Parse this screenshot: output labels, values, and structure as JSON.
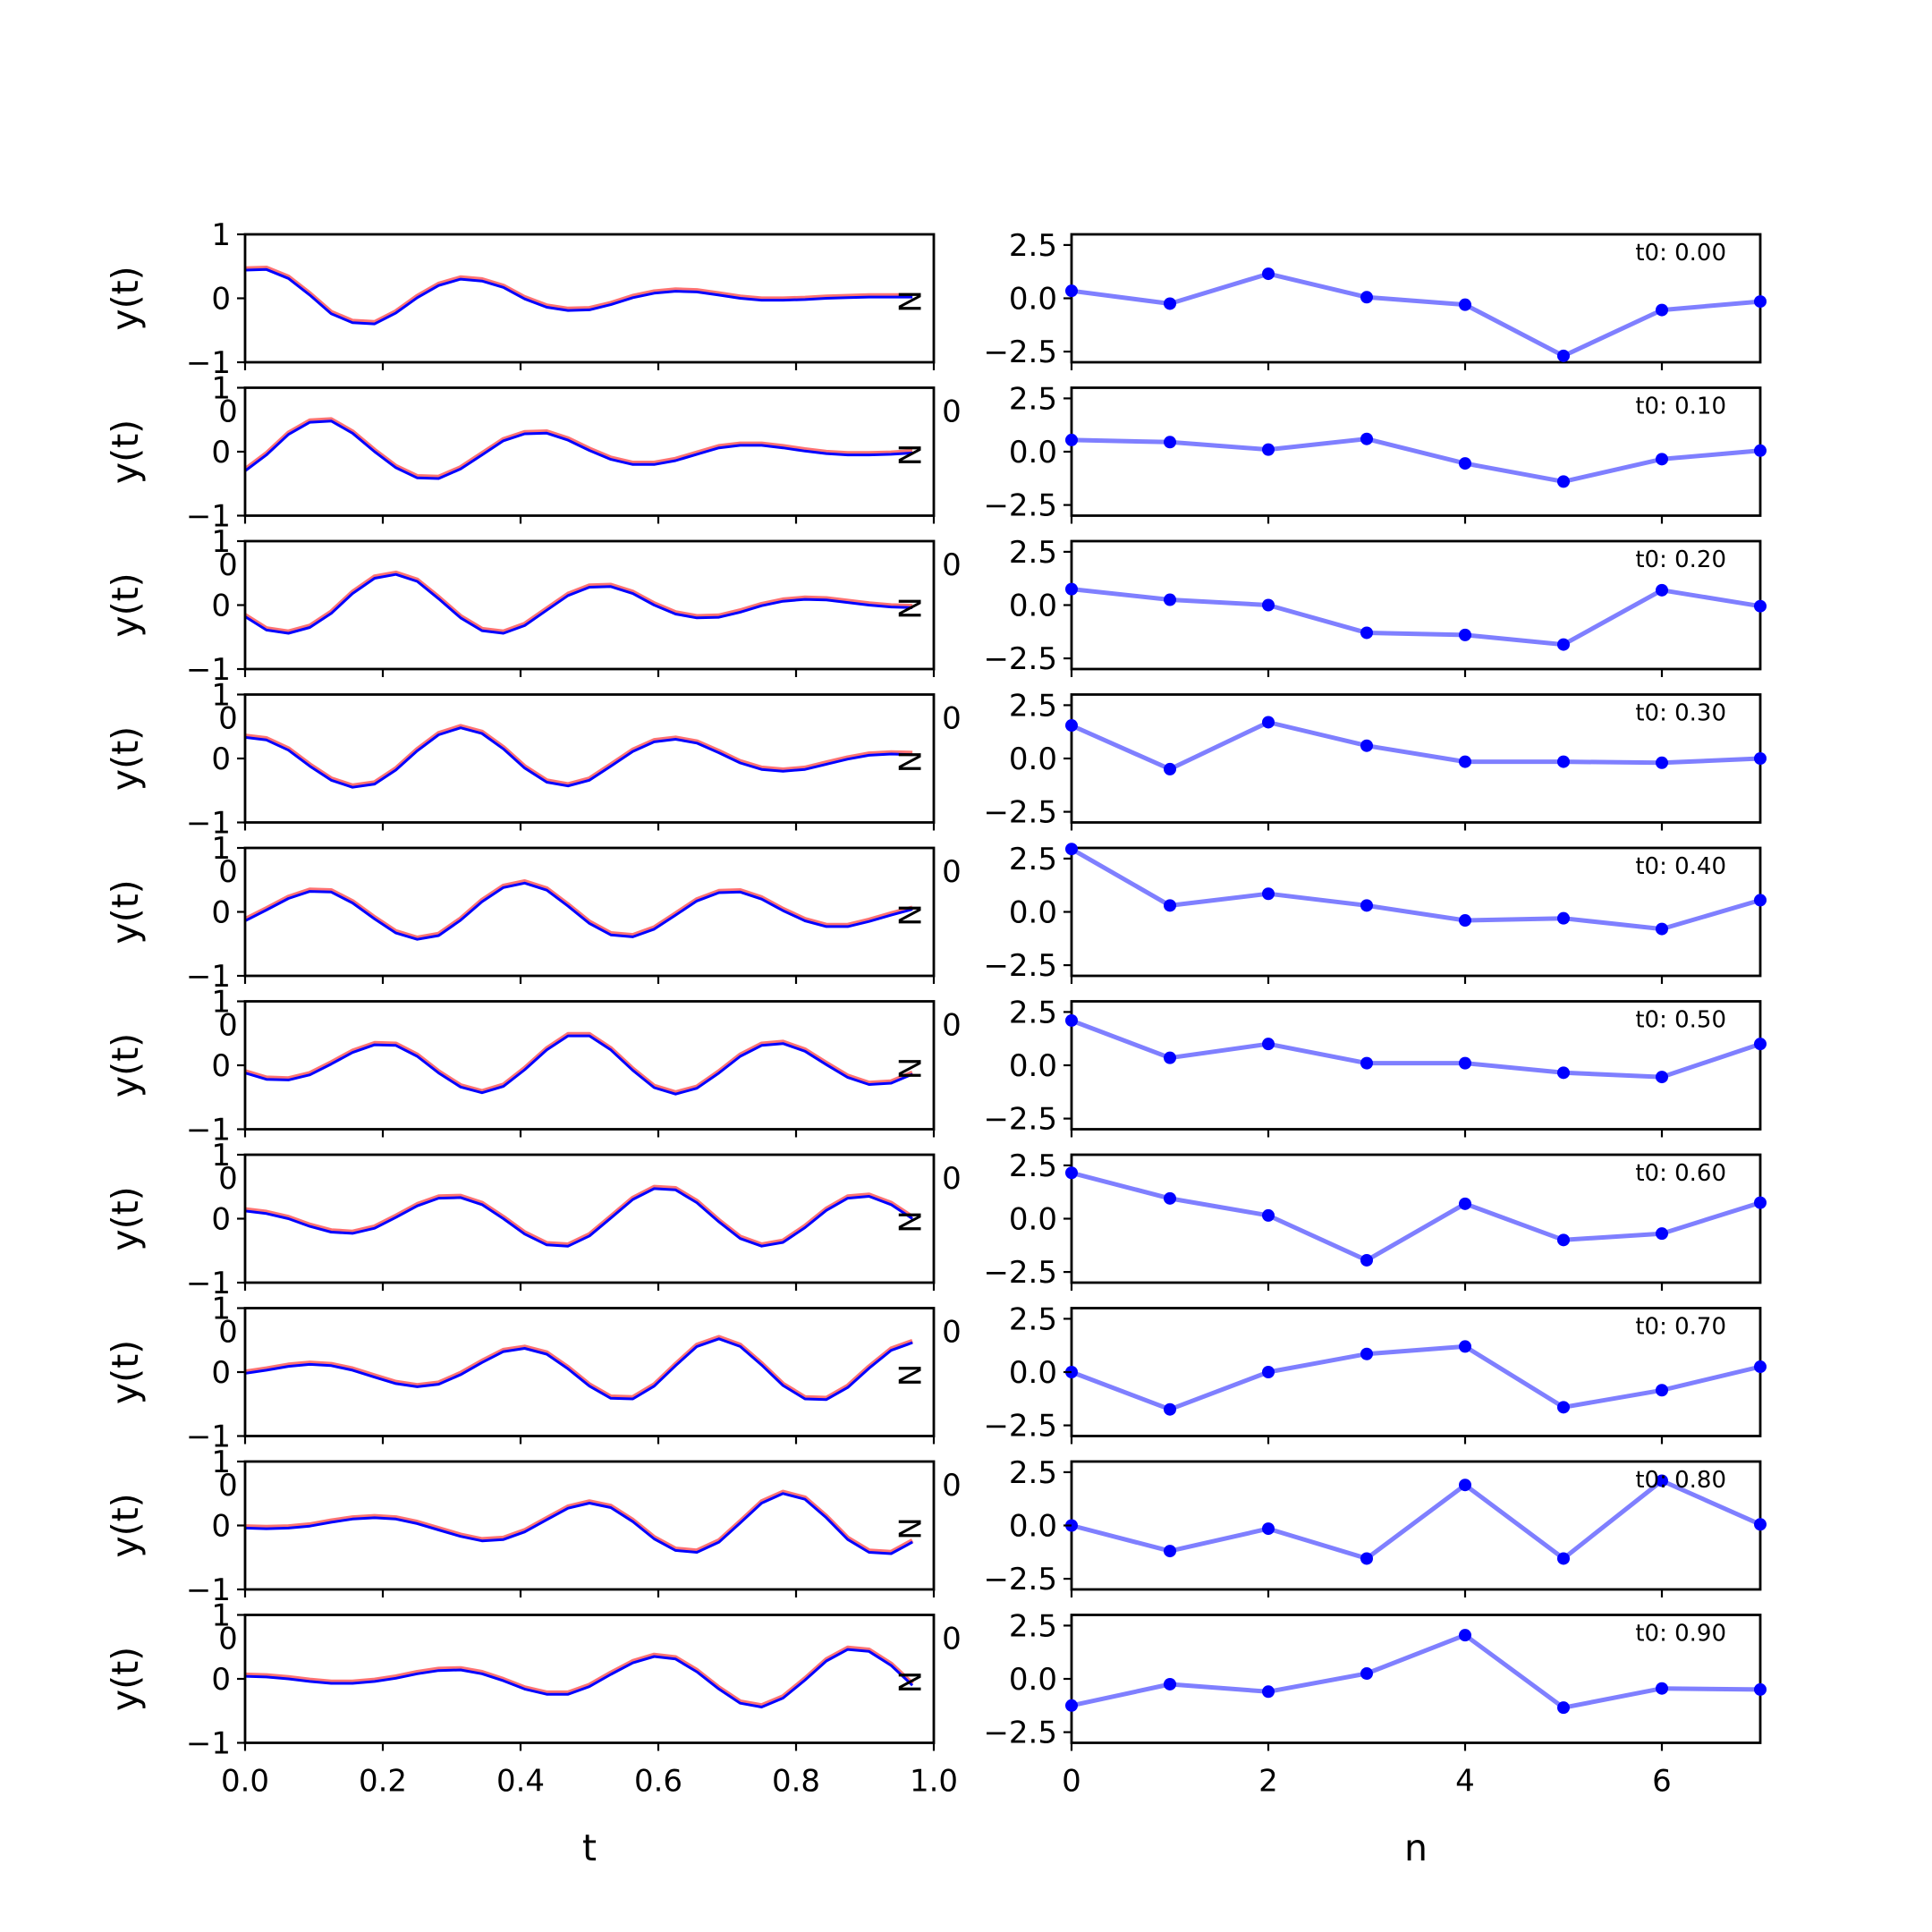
{
  "colors": {
    "truth": "#ff0000",
    "pred": "#0000ff",
    "coeff_line": "#0000ff",
    "coeff_point": "#0000ff"
  },
  "chart_data": [
    {
      "type": "line",
      "panels": 10,
      "x": [
        0.0,
        0.031,
        0.063,
        0.094,
        0.125,
        0.156,
        0.188,
        0.219,
        0.25,
        0.281,
        0.313,
        0.344,
        0.375,
        0.406,
        0.438,
        0.469,
        0.5,
        0.531,
        0.563,
        0.594,
        0.625,
        0.656,
        0.688,
        0.719,
        0.75,
        0.781,
        0.813,
        0.844,
        0.875,
        0.906,
        0.938,
        0.969
      ],
      "xlim": [
        0.0,
        1.0
      ],
      "ylim": [
        -1,
        1
      ],
      "xticks": [
        "0.0",
        "0.2",
        "0.4",
        "0.6",
        "0.8",
        "1.0"
      ],
      "yticks": [
        "1",
        "0",
        "−1"
      ],
      "xlabel": "t",
      "ylabel": "y(t)",
      "corner_label": "N",
      "clipped_tick_label": "0",
      "series": [
        {
          "values": [
            0.44,
            0.45,
            0.31,
            0.05,
            -0.24,
            -0.38,
            -0.4,
            -0.23,
            0.01,
            0.2,
            0.3,
            0.27,
            0.17,
            -0.01,
            -0.14,
            -0.19,
            -0.18,
            -0.1,
            0.01,
            0.08,
            0.11,
            0.1,
            0.05,
            0.0,
            -0.03,
            -0.03,
            -0.02,
            0.0,
            0.01,
            0.02,
            0.02,
            0.02
          ]
        },
        {
          "values": [
            -0.3,
            -0.05,
            0.27,
            0.46,
            0.48,
            0.29,
            0.0,
            -0.25,
            -0.41,
            -0.42,
            -0.27,
            -0.05,
            0.17,
            0.28,
            0.29,
            0.18,
            0.02,
            -0.12,
            -0.2,
            -0.2,
            -0.14,
            -0.04,
            0.06,
            0.1,
            0.1,
            0.06,
            0.01,
            -0.03,
            -0.05,
            -0.05,
            -0.04,
            -0.02
          ]
        },
        {
          "values": [
            -0.18,
            -0.39,
            -0.44,
            -0.35,
            -0.13,
            0.18,
            0.42,
            0.48,
            0.37,
            0.1,
            -0.2,
            -0.4,
            -0.44,
            -0.32,
            -0.08,
            0.15,
            0.28,
            0.29,
            0.18,
            0.0,
            -0.14,
            -0.2,
            -0.19,
            -0.11,
            -0.01,
            0.06,
            0.09,
            0.08,
            0.04,
            0.0,
            -0.03,
            -0.04
          ]
        },
        {
          "values": [
            0.33,
            0.29,
            0.13,
            -0.12,
            -0.34,
            -0.45,
            -0.4,
            -0.18,
            0.12,
            0.37,
            0.48,
            0.39,
            0.15,
            -0.15,
            -0.37,
            -0.43,
            -0.34,
            -0.12,
            0.11,
            0.26,
            0.3,
            0.24,
            0.09,
            -0.07,
            -0.17,
            -0.2,
            -0.17,
            -0.09,
            -0.01,
            0.05,
            0.07,
            0.06
          ]
        },
        {
          "values": [
            -0.14,
            0.03,
            0.21,
            0.32,
            0.31,
            0.14,
            -0.11,
            -0.33,
            -0.43,
            -0.37,
            -0.13,
            0.16,
            0.38,
            0.45,
            0.34,
            0.09,
            -0.18,
            -0.36,
            -0.39,
            -0.27,
            -0.05,
            0.17,
            0.3,
            0.31,
            0.2,
            0.02,
            -0.14,
            -0.23,
            -0.23,
            -0.15,
            -0.05,
            0.04
          ]
        },
        {
          "values": [
            -0.12,
            -0.22,
            -0.23,
            -0.15,
            0.02,
            0.2,
            0.32,
            0.31,
            0.14,
            -0.12,
            -0.34,
            -0.43,
            -0.33,
            -0.07,
            0.24,
            0.46,
            0.46,
            0.24,
            -0.08,
            -0.35,
            -0.45,
            -0.36,
            -0.12,
            0.14,
            0.31,
            0.34,
            0.22,
            0.01,
            -0.19,
            -0.3,
            -0.28,
            -0.14
          ]
        },
        {
          "values": [
            0.12,
            0.08,
            0.0,
            -0.12,
            -0.21,
            -0.23,
            -0.15,
            0.02,
            0.2,
            0.32,
            0.33,
            0.22,
            0.0,
            -0.24,
            -0.41,
            -0.43,
            -0.27,
            0.01,
            0.3,
            0.47,
            0.45,
            0.25,
            -0.05,
            -0.31,
            -0.43,
            -0.37,
            -0.14,
            0.13,
            0.32,
            0.35,
            0.22,
            0.0
          ]
        },
        {
          "values": [
            -0.02,
            0.03,
            0.09,
            0.12,
            0.1,
            0.03,
            -0.08,
            -0.18,
            -0.23,
            -0.19,
            -0.04,
            0.15,
            0.32,
            0.37,
            0.28,
            0.05,
            -0.22,
            -0.41,
            -0.42,
            -0.22,
            0.1,
            0.4,
            0.52,
            0.4,
            0.11,
            -0.21,
            -0.42,
            -0.43,
            -0.24,
            0.06,
            0.34,
            0.46
          ]
        },
        {
          "values": [
            -0.04,
            -0.05,
            -0.04,
            -0.01,
            0.05,
            0.1,
            0.12,
            0.1,
            0.03,
            -0.07,
            -0.17,
            -0.24,
            -0.22,
            -0.1,
            0.09,
            0.27,
            0.35,
            0.28,
            0.06,
            -0.21,
            -0.39,
            -0.42,
            -0.26,
            0.04,
            0.35,
            0.5,
            0.41,
            0.12,
            -0.22,
            -0.42,
            -0.44,
            -0.26
          ]
        },
        {
          "values": [
            0.04,
            0.03,
            0.0,
            -0.04,
            -0.07,
            -0.07,
            -0.04,
            0.01,
            0.08,
            0.13,
            0.14,
            0.08,
            -0.03,
            -0.16,
            -0.24,
            -0.24,
            -0.12,
            0.07,
            0.25,
            0.35,
            0.31,
            0.11,
            -0.16,
            -0.38,
            -0.44,
            -0.3,
            -0.02,
            0.28,
            0.46,
            0.43,
            0.21,
            -0.1
          ]
        }
      ]
    },
    {
      "type": "line",
      "panels": 10,
      "x": [
        0,
        1,
        2,
        3,
        4,
        5,
        6,
        7
      ],
      "xlim": [
        0,
        7
      ],
      "ylim": [
        -3,
        3
      ],
      "xticks": [
        "0",
        "2",
        "4",
        "6"
      ],
      "yticks": [
        "2.5",
        "0.0",
        "−2.5"
      ],
      "xlabel": "n",
      "series": [
        {
          "label": "t0: 0.00",
          "values": [
            0.35,
            -0.25,
            1.15,
            0.05,
            -0.3,
            -2.7,
            -0.55,
            -0.15
          ]
        },
        {
          "label": "t0: 0.10",
          "values": [
            0.55,
            0.45,
            0.1,
            0.6,
            -0.55,
            -1.4,
            -0.35,
            0.05
          ]
        },
        {
          "label": "t0: 0.20",
          "values": [
            0.75,
            0.25,
            0.0,
            -1.3,
            -1.4,
            -1.85,
            0.7,
            -0.05
          ]
        },
        {
          "label": "t0: 0.30",
          "values": [
            1.55,
            -0.5,
            1.7,
            0.6,
            -0.15,
            -0.15,
            -0.2,
            0.0
          ]
        },
        {
          "label": "t0: 0.40",
          "values": [
            2.95,
            0.3,
            0.85,
            0.3,
            -0.4,
            -0.3,
            -0.8,
            0.55
          ]
        },
        {
          "label": "t0: 0.50",
          "values": [
            2.1,
            0.35,
            1.0,
            0.1,
            0.1,
            -0.35,
            -0.55,
            1.0
          ]
        },
        {
          "label": "t0: 0.60",
          "values": [
            2.15,
            0.95,
            0.15,
            -1.95,
            0.7,
            -1.0,
            -0.7,
            0.75
          ]
        },
        {
          "label": "t0: 0.70",
          "values": [
            0.0,
            -1.75,
            0.0,
            0.85,
            1.2,
            -1.65,
            -0.85,
            0.25
          ]
        },
        {
          "label": "t0: 0.80",
          "values": [
            0.0,
            -1.2,
            -0.15,
            -1.55,
            1.9,
            -1.55,
            2.1,
            0.05
          ]
        },
        {
          "label": "t0: 0.90",
          "values": [
            -1.25,
            -0.25,
            -0.6,
            0.25,
            2.05,
            -1.35,
            -0.45,
            -0.5
          ]
        }
      ]
    }
  ]
}
